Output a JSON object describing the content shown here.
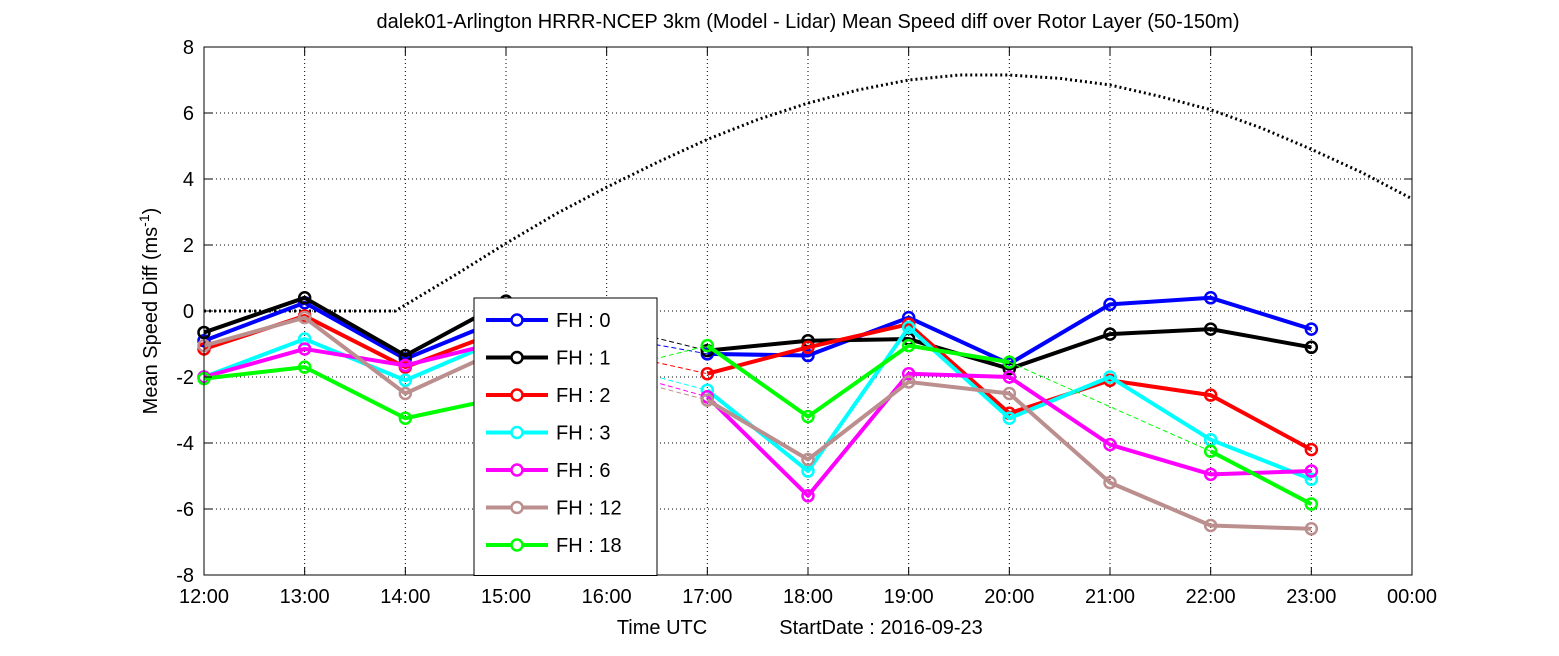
{
  "chart_data": {
    "type": "line",
    "title": "dalek01-Arlington HRRR-NCEP 3km (Model - Lidar) Mean Speed diff over Rotor Layer (50-150m)",
    "xlabel": "Time UTC",
    "xlabel_extra": "StartDate : 2016-09-23",
    "ylabel_main": "Mean Speed Diff (ms",
    "ylabel_sup": "-1",
    "ylabel_close": ")",
    "xlim": [
      12,
      24
    ],
    "ylim": [
      -8,
      8
    ],
    "x_ticks": [
      12,
      13,
      14,
      15,
      16,
      17,
      18,
      19,
      20,
      21,
      22,
      23,
      24
    ],
    "x_tick_labels": [
      "12:00",
      "13:00",
      "14:00",
      "15:00",
      "16:00",
      "17:00",
      "18:00",
      "19:00",
      "20:00",
      "21:00",
      "22:00",
      "23:00",
      "00:00"
    ],
    "y_ticks": [
      -8,
      -6,
      -4,
      -2,
      0,
      2,
      4,
      6,
      8
    ],
    "y_tick_labels": [
      "-8",
      "-6",
      "-4",
      "-2",
      "0",
      "2",
      "4",
      "6",
      "8"
    ],
    "grid": true,
    "legend_position": "center-left",
    "x": [
      12,
      13,
      14,
      15,
      16,
      17,
      18,
      19,
      20,
      21,
      22,
      23
    ],
    "series": [
      {
        "name": "FH : 0",
        "color": "#0000ff",
        "values": [
          -0.9,
          0.25,
          -1.45,
          -0.2,
          null,
          -1.3,
          -1.35,
          -0.2,
          -1.6,
          0.2,
          0.4,
          -0.55
        ]
      },
      {
        "name": "FH : 1",
        "color": "#000000",
        "values": [
          -0.65,
          0.4,
          -1.35,
          0.3,
          null,
          -1.2,
          -0.9,
          -0.85,
          -1.75,
          -0.7,
          -0.55,
          -1.1
        ]
      },
      {
        "name": "FH : 2",
        "color": "#ff0000",
        "values": [
          -1.15,
          -0.15,
          -1.7,
          -0.55,
          null,
          -1.9,
          -1.1,
          -0.4,
          -3.1,
          -2.1,
          -2.55,
          -4.2
        ]
      },
      {
        "name": "FH : 3",
        "color": "#00ffff",
        "values": [
          -2.0,
          -0.85,
          -2.1,
          -0.8,
          null,
          -2.4,
          -4.85,
          -0.5,
          -3.25,
          -2.0,
          -3.9,
          -5.1
        ]
      },
      {
        "name": "FH : 6",
        "color": "#ff00ff",
        "values": [
          -2.0,
          -1.15,
          -1.65,
          -0.9,
          null,
          -2.6,
          -5.6,
          -1.9,
          -2.0,
          -4.05,
          -4.95,
          -4.85
        ]
      },
      {
        "name": "FH : 12",
        "color": "#bc8f8f",
        "values": [
          -1.05,
          -0.2,
          -2.5,
          -1.1,
          null,
          -2.7,
          -4.5,
          -2.15,
          -2.5,
          -5.2,
          -6.5,
          -6.6
        ]
      },
      {
        "name": "FH : 18",
        "color": "#00ff00",
        "values": [
          -2.05,
          -1.7,
          -3.25,
          -2.6,
          null,
          -1.05,
          -3.2,
          -1.05,
          -1.55,
          null,
          -4.25,
          -5.85
        ]
      }
    ],
    "dotted_curve": {
      "color": "#000000",
      "x": [
        12.0,
        13.9,
        14.5,
        15.0,
        15.5,
        16.0,
        16.5,
        17.0,
        17.5,
        18.0,
        18.5,
        19.0,
        19.5,
        20.0,
        20.5,
        21.0,
        21.5,
        22.0,
        22.5,
        23.0,
        23.5,
        24.0
      ],
      "values": [
        0.0,
        0.0,
        1.1,
        2.05,
        2.95,
        3.75,
        4.5,
        5.2,
        5.8,
        6.3,
        6.7,
        7.0,
        7.15,
        7.15,
        7.05,
        6.85,
        6.5,
        6.1,
        5.55,
        4.9,
        4.2,
        3.4
      ]
    }
  }
}
